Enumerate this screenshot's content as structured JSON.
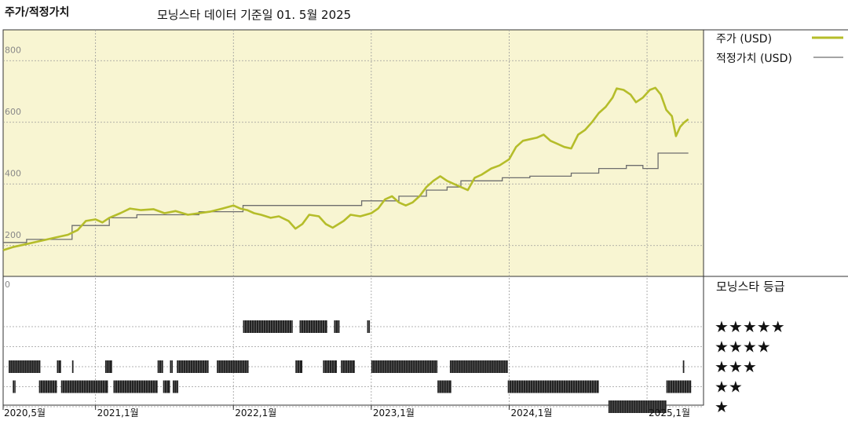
{
  "header": {
    "title": "주가/적정가치",
    "subtitle": "모닝스타 데이터 기준일 01. 5월 2025"
  },
  "colors": {
    "price": "#b5bd2a",
    "fair_value": "#6e6e6e",
    "panel_bg": "#f8f5d2",
    "rating_bar": "#222222"
  },
  "chart_data": [
    {
      "type": "line",
      "ylim": [
        100,
        900
      ],
      "yticks": [
        "800",
        "600",
        "400",
        "200"
      ],
      "ytick_values": [
        800,
        600,
        400,
        200
      ],
      "x_labels": [
        "2020,5월",
        "2021,1월",
        "2022,1월",
        "2023,1월",
        "2024,1월",
        "2025,1월"
      ],
      "x_label_years": [
        2020.33,
        2021.0,
        2022.0,
        2023.0,
        2024.0,
        2025.0
      ],
      "xlim": [
        2020.33,
        2025.33
      ],
      "grid": true,
      "legend_placement": "top-right",
      "series": [
        {
          "name": "주가 (USD)",
          "points": [
            [
              2020.33,
              185
            ],
            [
              2020.4,
              195
            ],
            [
              2020.5,
              205
            ],
            [
              2020.6,
              215
            ],
            [
              2020.7,
              225
            ],
            [
              2020.8,
              235
            ],
            [
              2020.87,
              250
            ],
            [
              2020.93,
              280
            ],
            [
              2021.0,
              285
            ],
            [
              2021.05,
              275
            ],
            [
              2021.1,
              290
            ],
            [
              2021.18,
              305
            ],
            [
              2021.25,
              320
            ],
            [
              2021.33,
              315
            ],
            [
              2021.42,
              318
            ],
            [
              2021.5,
              305
            ],
            [
              2021.58,
              312
            ],
            [
              2021.67,
              300
            ],
            [
              2021.75,
              305
            ],
            [
              2021.83,
              310
            ],
            [
              2021.92,
              320
            ],
            [
              2022.0,
              330
            ],
            [
              2022.05,
              320
            ],
            [
              2022.1,
              315
            ],
            [
              2022.15,
              305
            ],
            [
              2022.2,
              300
            ],
            [
              2022.27,
              290
            ],
            [
              2022.33,
              295
            ],
            [
              2022.4,
              280
            ],
            [
              2022.45,
              255
            ],
            [
              2022.5,
              270
            ],
            [
              2022.55,
              300
            ],
            [
              2022.62,
              295
            ],
            [
              2022.67,
              270
            ],
            [
              2022.72,
              258
            ],
            [
              2022.8,
              280
            ],
            [
              2022.85,
              300
            ],
            [
              2022.92,
              295
            ],
            [
              2023.0,
              305
            ],
            [
              2023.05,
              320
            ],
            [
              2023.1,
              350
            ],
            [
              2023.15,
              360
            ],
            [
              2023.2,
              340
            ],
            [
              2023.25,
              330
            ],
            [
              2023.3,
              340
            ],
            [
              2023.35,
              360
            ],
            [
              2023.4,
              390
            ],
            [
              2023.45,
              410
            ],
            [
              2023.5,
              425
            ],
            [
              2023.55,
              410
            ],
            [
              2023.6,
              400
            ],
            [
              2023.65,
              390
            ],
            [
              2023.7,
              380
            ],
            [
              2023.75,
              420
            ],
            [
              2023.8,
              430
            ],
            [
              2023.87,
              450
            ],
            [
              2023.93,
              460
            ],
            [
              2024.0,
              480
            ],
            [
              2024.05,
              520
            ],
            [
              2024.1,
              540
            ],
            [
              2024.15,
              545
            ],
            [
              2024.2,
              550
            ],
            [
              2024.25,
              560
            ],
            [
              2024.3,
              540
            ],
            [
              2024.35,
              530
            ],
            [
              2024.4,
              520
            ],
            [
              2024.45,
              515
            ],
            [
              2024.5,
              560
            ],
            [
              2024.55,
              575
            ],
            [
              2024.6,
              600
            ],
            [
              2024.65,
              630
            ],
            [
              2024.7,
              650
            ],
            [
              2024.75,
              680
            ],
            [
              2024.78,
              710
            ],
            [
              2024.83,
              705
            ],
            [
              2024.88,
              690
            ],
            [
              2024.92,
              665
            ],
            [
              2024.97,
              680
            ],
            [
              2025.02,
              705
            ],
            [
              2025.06,
              712
            ],
            [
              2025.1,
              690
            ],
            [
              2025.14,
              640
            ],
            [
              2025.18,
              620
            ],
            [
              2025.21,
              555
            ],
            [
              2025.24,
              585
            ],
            [
              2025.27,
              600
            ],
            [
              2025.3,
              610
            ]
          ]
        },
        {
          "name": "적정가치 (USD)",
          "points": [
            [
              2020.33,
              210
            ],
            [
              2020.5,
              210
            ],
            [
              2020.5,
              220
            ],
            [
              2020.83,
              220
            ],
            [
              2020.83,
              265
            ],
            [
              2021.1,
              265
            ],
            [
              2021.1,
              290
            ],
            [
              2021.3,
              290
            ],
            [
              2021.3,
              300
            ],
            [
              2021.75,
              300
            ],
            [
              2021.75,
              310
            ],
            [
              2022.07,
              310
            ],
            [
              2022.07,
              330
            ],
            [
              2022.93,
              330
            ],
            [
              2022.93,
              345
            ],
            [
              2023.2,
              345
            ],
            [
              2023.2,
              360
            ],
            [
              2023.4,
              360
            ],
            [
              2023.4,
              380
            ],
            [
              2023.55,
              380
            ],
            [
              2023.55,
              390
            ],
            [
              2023.65,
              390
            ],
            [
              2023.65,
              410
            ],
            [
              2023.95,
              410
            ],
            [
              2023.95,
              420
            ],
            [
              2024.15,
              420
            ],
            [
              2024.15,
              425
            ],
            [
              2024.45,
              425
            ],
            [
              2024.45,
              435
            ],
            [
              2024.65,
              435
            ],
            [
              2024.65,
              450
            ],
            [
              2024.85,
              450
            ],
            [
              2024.85,
              460
            ],
            [
              2024.97,
              460
            ],
            [
              2024.97,
              450
            ],
            [
              2025.08,
              450
            ],
            [
              2025.08,
              500
            ],
            [
              2025.3,
              500
            ]
          ]
        }
      ]
    },
    {
      "type": "bar",
      "title": "모닝스타 등급",
      "levels": [
        "★★★★★",
        "★★★★",
        "★★★",
        "★★",
        "★"
      ],
      "level_values": [
        5,
        4,
        3,
        2,
        1
      ],
      "segments": {
        "5": [
          [
            2022.07,
            2022.43
          ],
          [
            2022.48,
            2022.68
          ],
          [
            2022.73,
            2022.77
          ],
          [
            2022.97,
            2022.99
          ]
        ],
        "4": [],
        "3": [
          [
            2020.37,
            2020.6
          ],
          [
            2020.72,
            2020.75
          ],
          [
            2020.83,
            2020.84
          ],
          [
            2021.07,
            2021.12
          ],
          [
            2021.45,
            2021.49
          ],
          [
            2021.54,
            2021.56
          ],
          [
            2021.59,
            2021.82
          ],
          [
            2021.88,
            2022.11
          ],
          [
            2022.45,
            2022.5
          ],
          [
            2022.65,
            2022.75
          ],
          [
            2022.78,
            2022.88
          ],
          [
            2023.0,
            2023.48
          ],
          [
            2023.57,
            2023.99
          ],
          [
            2025.26,
            2025.27
          ]
        ],
        "2": [
          [
            2020.4,
            2020.42
          ],
          [
            2020.59,
            2020.72
          ],
          [
            2020.75,
            2021.09
          ],
          [
            2021.13,
            2021.45
          ],
          [
            2021.49,
            2021.54
          ],
          [
            2021.56,
            2021.6
          ],
          [
            2023.48,
            2023.58
          ],
          [
            2023.99,
            2024.65
          ],
          [
            2025.14,
            2025.32
          ]
        ],
        "1": [
          [
            2024.72,
            2025.14
          ]
        ]
      }
    }
  ]
}
